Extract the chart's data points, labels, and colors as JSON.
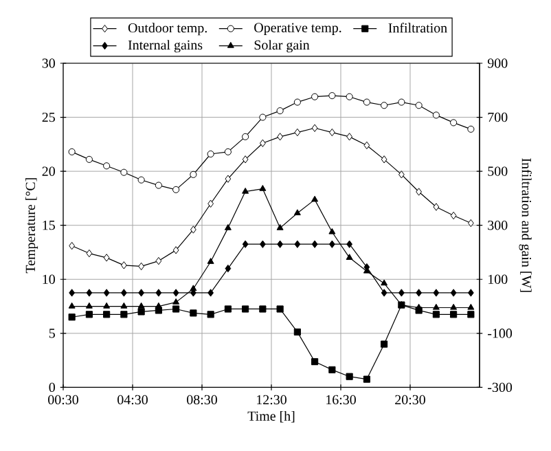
{
  "chart_data": {
    "type": "line",
    "xlabel": "Time [h]",
    "ylabel": "Temperature [°C]",
    "y2label": "Infiltration and gain [W]",
    "x": [
      1,
      2,
      3,
      4,
      5,
      6,
      7,
      8,
      9,
      10,
      11,
      12,
      13,
      14,
      15,
      16,
      17,
      18,
      19,
      20,
      21,
      22,
      23,
      24
    ],
    "xlim": [
      0.5,
      24.5
    ],
    "xticks": [
      {
        "value": 0.5,
        "label": "00:30"
      },
      {
        "value": 4.5,
        "label": "04:30"
      },
      {
        "value": 8.5,
        "label": "08:30"
      },
      {
        "value": 12.5,
        "label": "12:30"
      },
      {
        "value": 16.5,
        "label": "16:30"
      },
      {
        "value": 20.5,
        "label": "20:30"
      }
    ],
    "ylim": [
      0,
      30
    ],
    "yticks": [
      0,
      5,
      10,
      15,
      20,
      25,
      30
    ],
    "y2lim": [
      -300,
      900
    ],
    "y2ticks": [
      -300,
      -100,
      100,
      300,
      500,
      700,
      900
    ],
    "grid": true,
    "legend": "top",
    "line_style": "solid",
    "series": [
      {
        "name": "Outdoor temp.",
        "color": "#000000",
        "marker": "diamond",
        "values": [
          13.1,
          12.4,
          12.0,
          11.3,
          11.2,
          11.7,
          12.7,
          14.6,
          17.0,
          19.3,
          21.1,
          22.6,
          23.2,
          23.6,
          24.0,
          23.6,
          23.2,
          22.4,
          21.1,
          19.7,
          18.1,
          16.7,
          15.9,
          15.2
        ]
      },
      {
        "name": "Operative temp.",
        "color": "#000000",
        "marker": "circle",
        "values": [
          21.8,
          21.1,
          20.5,
          19.9,
          19.2,
          18.7,
          18.3,
          19.7,
          21.6,
          21.8,
          23.2,
          25.0,
          25.6,
          26.4,
          26.9,
          27.0,
          26.9,
          26.4,
          26.1,
          26.4,
          26.1,
          25.2,
          24.5,
          23.9
        ]
      },
      {
        "name": "Infiltration",
        "color": "#000000",
        "marker": "square",
        "axis": "y2",
        "values": [
          -40,
          -30,
          -30,
          -30,
          -20,
          -15,
          -10,
          -25,
          -30,
          -10,
          -10,
          -10,
          -10,
          -95,
          -205,
          -235,
          -260,
          -270,
          -140,
          5,
          -15,
          -30,
          -30,
          -30
        ]
      },
      {
        "name": "Internal gains",
        "color": "#000000",
        "marker": "diamond",
        "axis": "y2",
        "values": [
          50,
          50,
          50,
          50,
          50,
          50,
          50,
          50,
          50,
          140,
          230,
          230,
          230,
          230,
          230,
          230,
          230,
          145,
          50,
          50,
          50,
          50,
          50,
          50
        ]
      },
      {
        "name": "Solar gain",
        "color": "#000000",
        "marker": "triangle",
        "axis": "y2",
        "values": [
          0,
          0,
          0,
          0,
          0,
          0,
          15,
          65,
          165,
          290,
          425,
          435,
          290,
          345,
          395,
          275,
          180,
          130,
          85,
          5,
          -5,
          -5,
          -5,
          -5
        ]
      }
    ]
  }
}
